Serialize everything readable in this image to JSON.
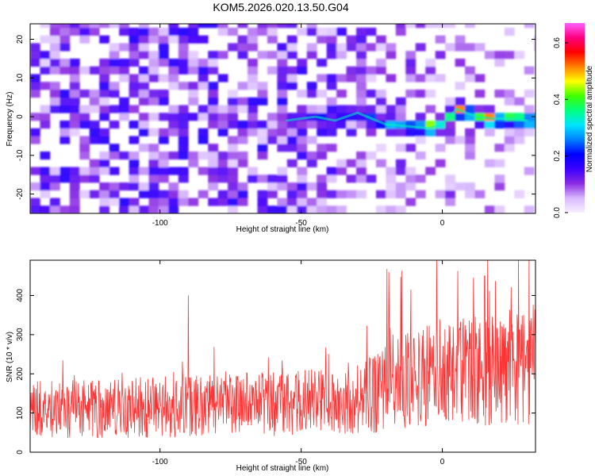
{
  "chart_data": [
    {
      "type": "heatmap",
      "title": "KOM5.2026.020.13.50.G04",
      "xlabel": "Height of straight line (km)",
      "ylabel": "Frequency (Hz)",
      "xlim": [
        -146,
        33
      ],
      "ylim": [
        -25,
        24
      ],
      "xticks": [
        -100,
        -50,
        0
      ],
      "yticks": [
        -20,
        -10,
        0,
        10,
        20
      ],
      "colorbar": {
        "label": "Normalized spectral amplitude",
        "range": [
          0.0,
          0.67
        ],
        "ticks": [
          "0.0",
          "0.2",
          "0.4",
          "0.6"
        ],
        "tick_values": [
          0.0,
          0.2,
          0.4,
          0.6
        ],
        "colors": [
          "#f8f0ff",
          "#d8b8ff",
          "#8a2be2",
          "#3b00ff",
          "#0000ff",
          "#0080ff",
          "#00e5ff",
          "#00ff80",
          "#40ff00",
          "#ffff00",
          "#ff8000",
          "#ff0000",
          "#ff0080",
          "#ff60ff"
        ]
      },
      "ridge": [
        {
          "x": -55,
          "y": -1
        },
        {
          "x": -45,
          "y": 0
        },
        {
          "x": -38,
          "y": -1
        },
        {
          "x": -30,
          "y": 1
        },
        {
          "x": -20,
          "y": -2
        },
        {
          "x": -12,
          "y": -2.5
        },
        {
          "x": -5,
          "y": -3
        },
        {
          "x": 0,
          "y": -2
        },
        {
          "x": 5,
          "y": 2
        },
        {
          "x": 12,
          "y": 0
        },
        {
          "x": 18,
          "y": -0.5
        },
        {
          "x": 25,
          "y": -0.5
        },
        {
          "x": 30,
          "y": -1
        }
      ]
    },
    {
      "type": "line",
      "xlabel": "Height of straight line (km)",
      "ylabel": "SNR (10 * v/v)",
      "xlim": [
        -146,
        33
      ],
      "ylim": [
        0,
        490
      ],
      "xticks": [
        -100,
        -50,
        0
      ],
      "yticks": [
        0,
        100,
        200,
        300,
        400
      ],
      "color": "#ff3333",
      "trend": [
        {
          "x": -146,
          "y": 110
        },
        {
          "x": -100,
          "y": 115
        },
        {
          "x": -50,
          "y": 125
        },
        {
          "x": -25,
          "y": 145
        },
        {
          "x": -20,
          "y": 180
        },
        {
          "x": 0,
          "y": 200
        },
        {
          "x": 33,
          "y": 220
        }
      ],
      "notable_peaks": [
        {
          "x": -2,
          "y": 490
        },
        {
          "x": 27,
          "y": 490
        },
        {
          "x": -19,
          "y": 460
        },
        {
          "x": 15,
          "y": 450
        },
        {
          "x": -90,
          "y": 400
        }
      ]
    }
  ]
}
